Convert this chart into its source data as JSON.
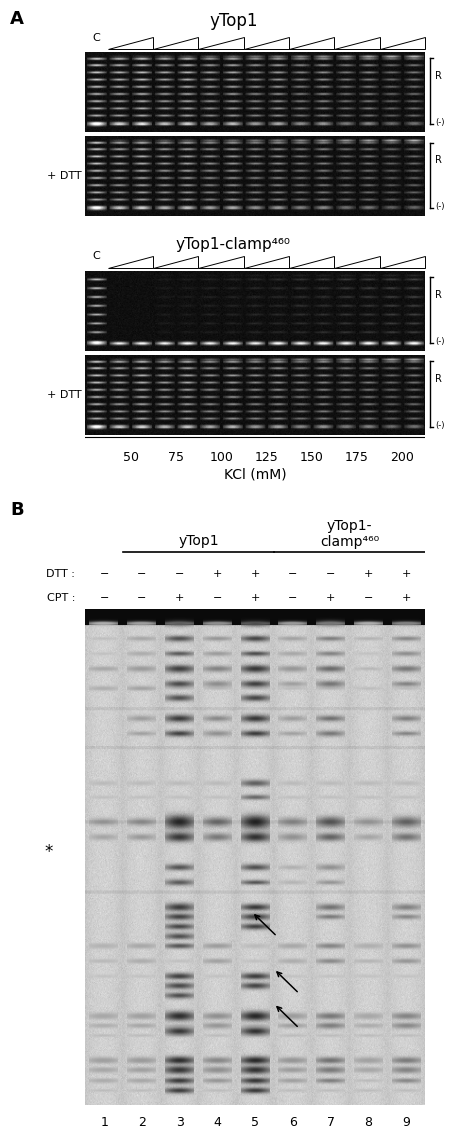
{
  "panel_A_title": "yTop1",
  "panel_A2_title": "yTop1-clamp⁴⁶⁰",
  "kcl_values": [
    "50",
    "75",
    "100",
    "125",
    "150",
    "175",
    "200"
  ],
  "kcl_xlabel": "KCl (mM)",
  "dtt_label": "+ DTT",
  "right_R": "R",
  "right_neg": "(-)",
  "ytop1_label": "yTop1",
  "ytop1_clamp_label": "yTop1-\nclamp⁴⁶⁰",
  "dtt_vals": [
    "−",
    "−",
    "−",
    "+",
    "+",
    "−",
    "−",
    "+",
    "+"
  ],
  "cpt_vals": [
    "−",
    "−",
    "+",
    "−",
    "+",
    "−",
    "+",
    "−",
    "+"
  ],
  "lane_numbers": [
    "1",
    "2",
    "3",
    "4",
    "5",
    "6",
    "7",
    "8",
    "9"
  ],
  "bg_color": "#ffffff"
}
